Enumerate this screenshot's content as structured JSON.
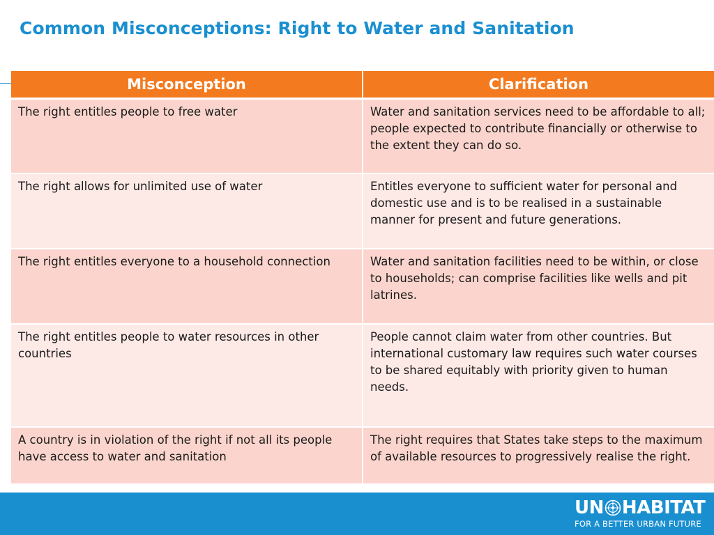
{
  "title": "Common Misconceptions: Right to Water and Sanitation",
  "table": {
    "headers": [
      "Misconception",
      "Clarification"
    ],
    "rows": [
      {
        "misconception": "The right entitles people to free water",
        "clarification": "Water and sanitation services need to be affordable to all; people expected to contribute financially or otherwise to the extent they can do so."
      },
      {
        "misconception": "The right allows for unlimited use of water",
        "clarification": "Entitles everyone to sufficient water for personal and domestic use and is to be realised in a sustainable manner for present and future generations."
      },
      {
        "misconception": "The right entitles everyone to a household connection",
        "clarification": "Water and sanitation facilities need to be within, or close to households; can comprise facilities like wells and pit latrines."
      },
      {
        "misconception": "The right entitles people to water resources in other countries",
        "clarification": "People cannot claim water from other countries. But international customary law requires such water courses to be shared equitably with priority given to human needs."
      },
      {
        "misconception": "A country is in violation of the right if not all its people have access to water and sanitation",
        "clarification": "The right requires that States take steps to the maximum of available resources to progressively realise the right."
      }
    ]
  },
  "footer": {
    "logo_left": "UN",
    "logo_right": "HABITAT",
    "logo_tagline": "FOR A BETTER URBAN FUTURE",
    "emblem_icon": "un-emblem-icon"
  },
  "colors": {
    "title": "#1a8fd0",
    "header_bg": "#f37a1f",
    "row_dark": "#fbd5cd",
    "row_light": "#fde9e6",
    "footer_bg": "#1a8fd0"
  }
}
